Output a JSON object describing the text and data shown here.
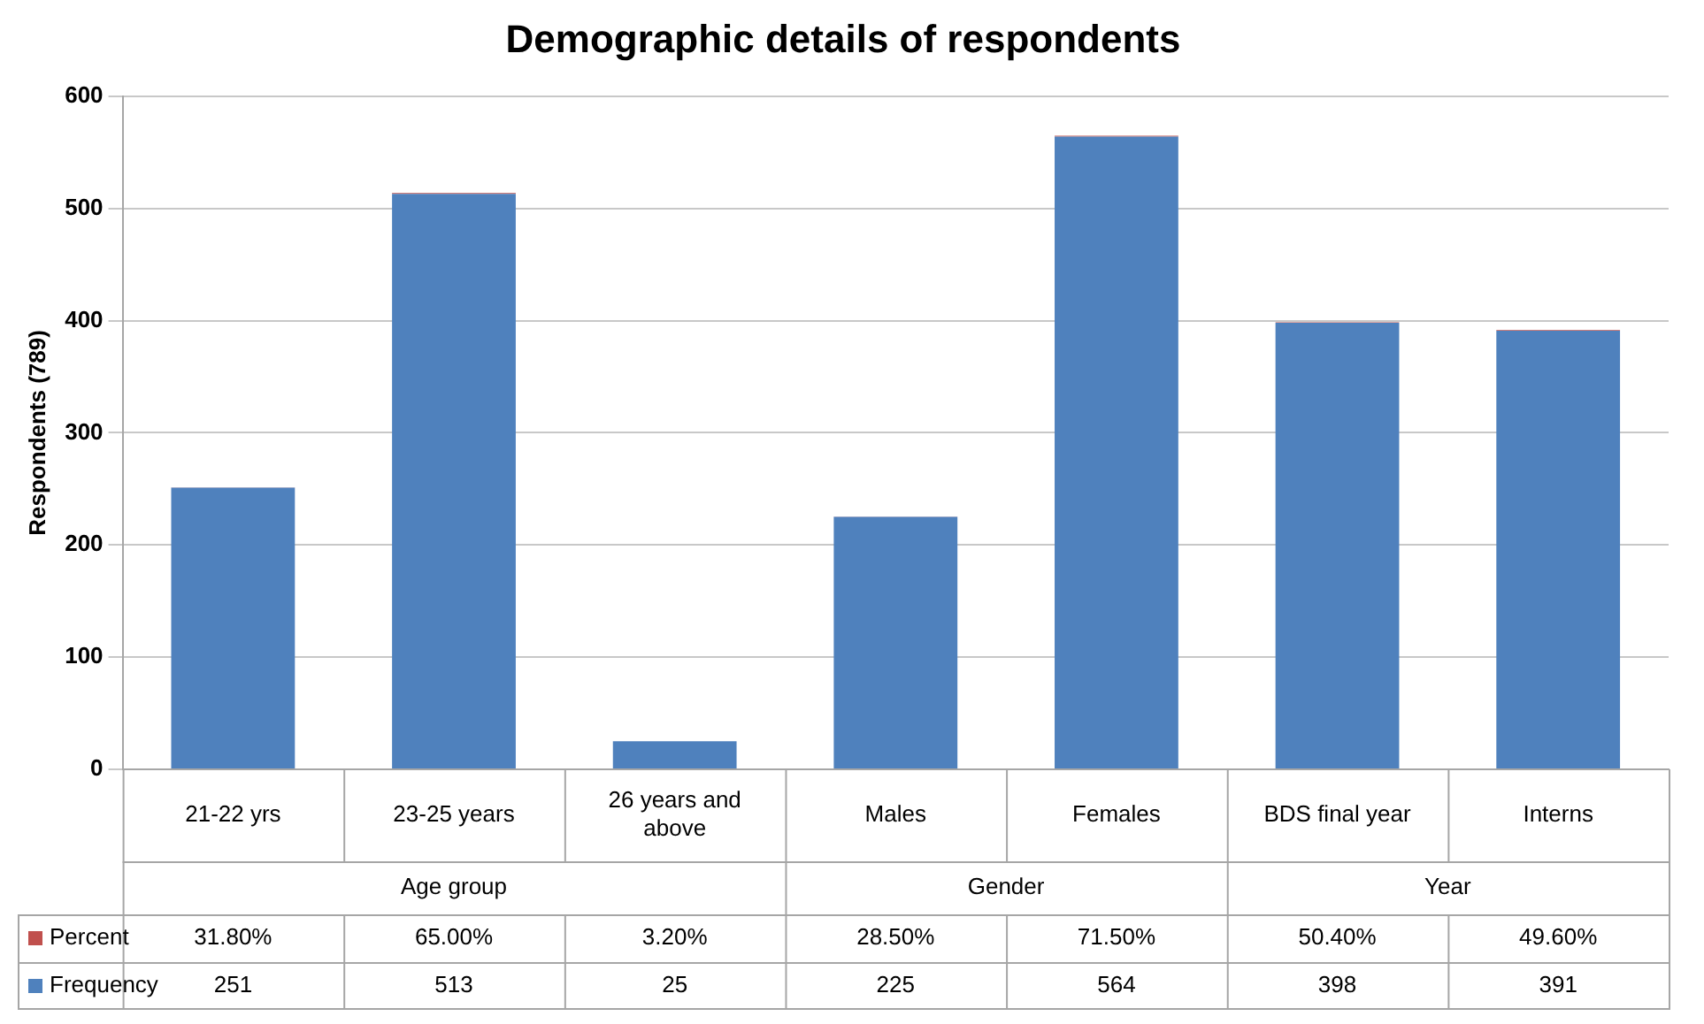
{
  "chart_data": {
    "type": "bar",
    "title": "Demographic details of respondents",
    "ylabel": "Respondents (789)",
    "categories": [
      "21-22 yrs",
      "23-25 years",
      "26 years and above",
      "Males",
      "Females",
      "BDS final year",
      "Interns"
    ],
    "stacked": true,
    "ylim": [
      0,
      600
    ],
    "yticks": [
      0,
      100,
      200,
      300,
      400,
      500,
      600
    ],
    "grid": "y",
    "legend": "bottom",
    "annotations": [
      "Age group",
      "Gender",
      "Year"
    ],
    "series": [
      {
        "name": "Frequency",
        "color": "#4f81bd",
        "values": [
          251,
          513,
          25,
          225,
          564,
          398,
          391
        ],
        "value_labels": [
          "251",
          "513",
          "25",
          "225",
          "564",
          "398",
          "391"
        ]
      },
      {
        "name": "Percent",
        "color": "#c0504d",
        "values": [
          0.318,
          0.65,
          0.032,
          0.285,
          0.715,
          0.504,
          0.496
        ],
        "value_labels": [
          "31.80%",
          "65.00%",
          "3.20%",
          "28.50%",
          "71.50%",
          "50.40%",
          "49.60%"
        ]
      }
    ]
  }
}
